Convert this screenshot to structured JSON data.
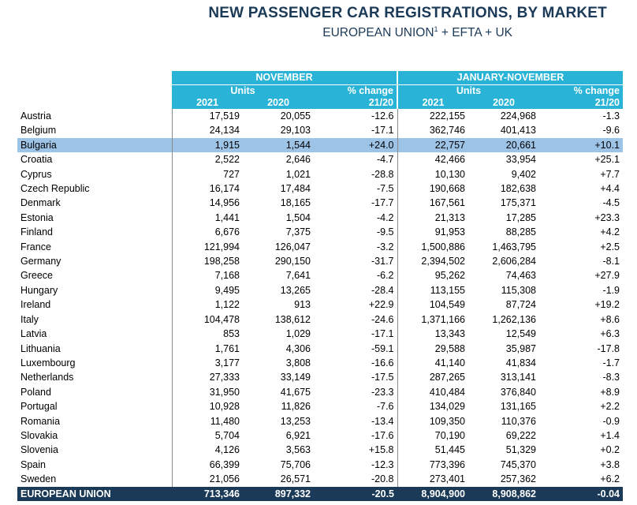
{
  "header": {
    "title": "NEW PASSENGER CAR REGISTRATIONS, BY MARKET",
    "subtitle_main": "EUROPEAN UNION",
    "subtitle_sup": "1",
    "subtitle_rest": " + EFTA + UK"
  },
  "columns": {
    "period1": "NOVEMBER",
    "period2": "JANUARY-NOVEMBER",
    "units": "Units",
    "pct_change": "% change",
    "year1": "2021",
    "year2": "2020",
    "change_period": "21/20"
  },
  "highlight_row": "Bulgaria",
  "rows": [
    {
      "country": "Austria",
      "nov_2021": "17,519",
      "nov_2020": "20,055",
      "nov_chg": "-12.6",
      "ytd_2021": "222,155",
      "ytd_2020": "224,968",
      "ytd_chg": "-1.3"
    },
    {
      "country": "Belgium",
      "nov_2021": "24,134",
      "nov_2020": "29,103",
      "nov_chg": "-17.1",
      "ytd_2021": "362,746",
      "ytd_2020": "401,413",
      "ytd_chg": "-9.6"
    },
    {
      "country": "Bulgaria",
      "nov_2021": "1,915",
      "nov_2020": "1,544",
      "nov_chg": "+24.0",
      "ytd_2021": "22,757",
      "ytd_2020": "20,661",
      "ytd_chg": "+10.1"
    },
    {
      "country": "Croatia",
      "nov_2021": "2,522",
      "nov_2020": "2,646",
      "nov_chg": "-4.7",
      "ytd_2021": "42,466",
      "ytd_2020": "33,954",
      "ytd_chg": "+25.1"
    },
    {
      "country": "Cyprus",
      "nov_2021": "727",
      "nov_2020": "1,021",
      "nov_chg": "-28.8",
      "ytd_2021": "10,130",
      "ytd_2020": "9,402",
      "ytd_chg": "+7.7"
    },
    {
      "country": "Czech Republic",
      "nov_2021": "16,174",
      "nov_2020": "17,484",
      "nov_chg": "-7.5",
      "ytd_2021": "190,668",
      "ytd_2020": "182,638",
      "ytd_chg": "+4.4"
    },
    {
      "country": "Denmark",
      "nov_2021": "14,956",
      "nov_2020": "18,165",
      "nov_chg": "-17.7",
      "ytd_2021": "167,561",
      "ytd_2020": "175,371",
      "ytd_chg": "-4.5"
    },
    {
      "country": "Estonia",
      "nov_2021": "1,441",
      "nov_2020": "1,504",
      "nov_chg": "-4.2",
      "ytd_2021": "21,313",
      "ytd_2020": "17,285",
      "ytd_chg": "+23.3"
    },
    {
      "country": "Finland",
      "nov_2021": "6,676",
      "nov_2020": "7,375",
      "nov_chg": "-9.5",
      "ytd_2021": "91,953",
      "ytd_2020": "88,285",
      "ytd_chg": "+4.2"
    },
    {
      "country": "France",
      "nov_2021": "121,994",
      "nov_2020": "126,047",
      "nov_chg": "-3.2",
      "ytd_2021": "1,500,886",
      "ytd_2020": "1,463,795",
      "ytd_chg": "+2.5"
    },
    {
      "country": "Germany",
      "nov_2021": "198,258",
      "nov_2020": "290,150",
      "nov_chg": "-31.7",
      "ytd_2021": "2,394,502",
      "ytd_2020": "2,606,284",
      "ytd_chg": "-8.1"
    },
    {
      "country": "Greece",
      "nov_2021": "7,168",
      "nov_2020": "7,641",
      "nov_chg": "-6.2",
      "ytd_2021": "95,262",
      "ytd_2020": "74,463",
      "ytd_chg": "+27.9"
    },
    {
      "country": "Hungary",
      "nov_2021": "9,495",
      "nov_2020": "13,265",
      "nov_chg": "-28.4",
      "ytd_2021": "113,155",
      "ytd_2020": "115,308",
      "ytd_chg": "-1.9"
    },
    {
      "country": "Ireland",
      "nov_2021": "1,122",
      "nov_2020": "913",
      "nov_chg": "+22.9",
      "ytd_2021": "104,549",
      "ytd_2020": "87,724",
      "ytd_chg": "+19.2"
    },
    {
      "country": "Italy",
      "nov_2021": "104,478",
      "nov_2020": "138,612",
      "nov_chg": "-24.6",
      "ytd_2021": "1,371,166",
      "ytd_2020": "1,262,136",
      "ytd_chg": "+8.6"
    },
    {
      "country": "Latvia",
      "nov_2021": "853",
      "nov_2020": "1,029",
      "nov_chg": "-17.1",
      "ytd_2021": "13,343",
      "ytd_2020": "12,549",
      "ytd_chg": "+6.3"
    },
    {
      "country": "Lithuania",
      "nov_2021": "1,761",
      "nov_2020": "4,306",
      "nov_chg": "-59.1",
      "ytd_2021": "29,588",
      "ytd_2020": "35,987",
      "ytd_chg": "-17.8"
    },
    {
      "country": "Luxembourg",
      "nov_2021": "3,177",
      "nov_2020": "3,808",
      "nov_chg": "-16.6",
      "ytd_2021": "41,140",
      "ytd_2020": "41,834",
      "ytd_chg": "-1.7"
    },
    {
      "country": "Netherlands",
      "nov_2021": "27,333",
      "nov_2020": "33,149",
      "nov_chg": "-17.5",
      "ytd_2021": "287,265",
      "ytd_2020": "313,141",
      "ytd_chg": "-8.3"
    },
    {
      "country": "Poland",
      "nov_2021": "31,950",
      "nov_2020": "41,675",
      "nov_chg": "-23.3",
      "ytd_2021": "410,484",
      "ytd_2020": "376,840",
      "ytd_chg": "+8.9"
    },
    {
      "country": "Portugal",
      "nov_2021": "10,928",
      "nov_2020": "11,826",
      "nov_chg": "-7.6",
      "ytd_2021": "134,029",
      "ytd_2020": "131,165",
      "ytd_chg": "+2.2"
    },
    {
      "country": "Romania",
      "nov_2021": "11,480",
      "nov_2020": "13,253",
      "nov_chg": "-13.4",
      "ytd_2021": "109,350",
      "ytd_2020": "110,376",
      "ytd_chg": "-0.9"
    },
    {
      "country": "Slovakia",
      "nov_2021": "5,704",
      "nov_2020": "6,921",
      "nov_chg": "-17.6",
      "ytd_2021": "70,190",
      "ytd_2020": "69,222",
      "ytd_chg": "+1.4"
    },
    {
      "country": "Slovenia",
      "nov_2021": "4,126",
      "nov_2020": "3,563",
      "nov_chg": "+15.8",
      "ytd_2021": "51,445",
      "ytd_2020": "51,329",
      "ytd_chg": "+0.2"
    },
    {
      "country": "Spain",
      "nov_2021": "66,399",
      "nov_2020": "75,706",
      "nov_chg": "-12.3",
      "ytd_2021": "773,396",
      "ytd_2020": "745,370",
      "ytd_chg": "+3.8"
    },
    {
      "country": "Sweden",
      "nov_2021": "21,056",
      "nov_2020": "26,571",
      "nov_chg": "-20.8",
      "ytd_2021": "273,401",
      "ytd_2020": "257,362",
      "ytd_chg": "+6.2"
    }
  ],
  "total": {
    "country": "EUROPEAN UNION",
    "nov_2021": "713,346",
    "nov_2020": "897,332",
    "nov_chg": "-20.5",
    "ytd_2021": "8,904,900",
    "ytd_2020": "8,908,862",
    "ytd_chg": "-0.04"
  },
  "colors": {
    "header_bg": "#29b3d6",
    "title_color": "#1b3a57",
    "highlight_row_bg": "#9dc3e6",
    "total_row_bg": "#1b3a57"
  }
}
